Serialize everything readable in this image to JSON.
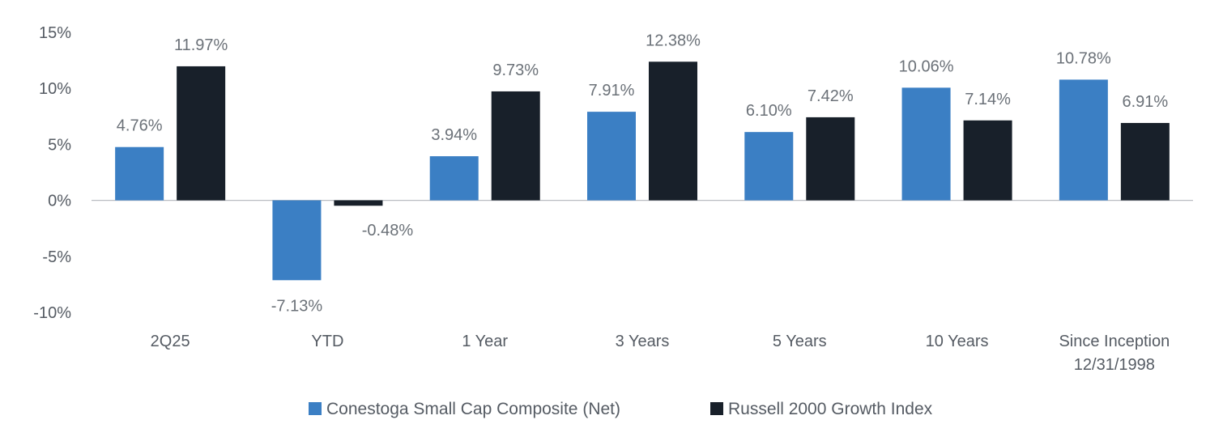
{
  "chart_data": {
    "type": "bar",
    "title": "",
    "xlabel": "",
    "ylabel": "",
    "ylim": [
      -10,
      15
    ],
    "yticks": [
      15,
      10,
      5,
      0,
      -5,
      -10
    ],
    "ytick_labels": [
      "15%",
      "10%",
      "5%",
      "0%",
      "-5%",
      "-10%"
    ],
    "categories": [
      [
        "2Q25"
      ],
      [
        "YTD"
      ],
      [
        "1 Year"
      ],
      [
        "3 Years"
      ],
      [
        "5 Years"
      ],
      [
        "10 Years"
      ],
      [
        "Since Inception",
        "12/31/1998"
      ]
    ],
    "series": [
      {
        "name": "Conestoga Small Cap Composite (Net)",
        "color": "#3b7fc4",
        "values": [
          4.76,
          -7.13,
          3.94,
          7.91,
          6.1,
          10.06,
          10.78
        ],
        "labels": [
          "4.76%",
          "-7.13%",
          "3.94%",
          "7.91%",
          "6.10%",
          "10.06%",
          "10.78%"
        ]
      },
      {
        "name": "Russell 2000 Growth Index",
        "color": "#18202a",
        "values": [
          11.97,
          -0.48,
          9.73,
          12.38,
          7.42,
          7.14,
          6.91
        ],
        "labels": [
          "11.97%",
          "-0.48%",
          "9.73%",
          "12.38%",
          "7.42%",
          "7.14%",
          "6.91%"
        ]
      }
    ],
    "grid": false,
    "legend_position": "bottom-center"
  }
}
